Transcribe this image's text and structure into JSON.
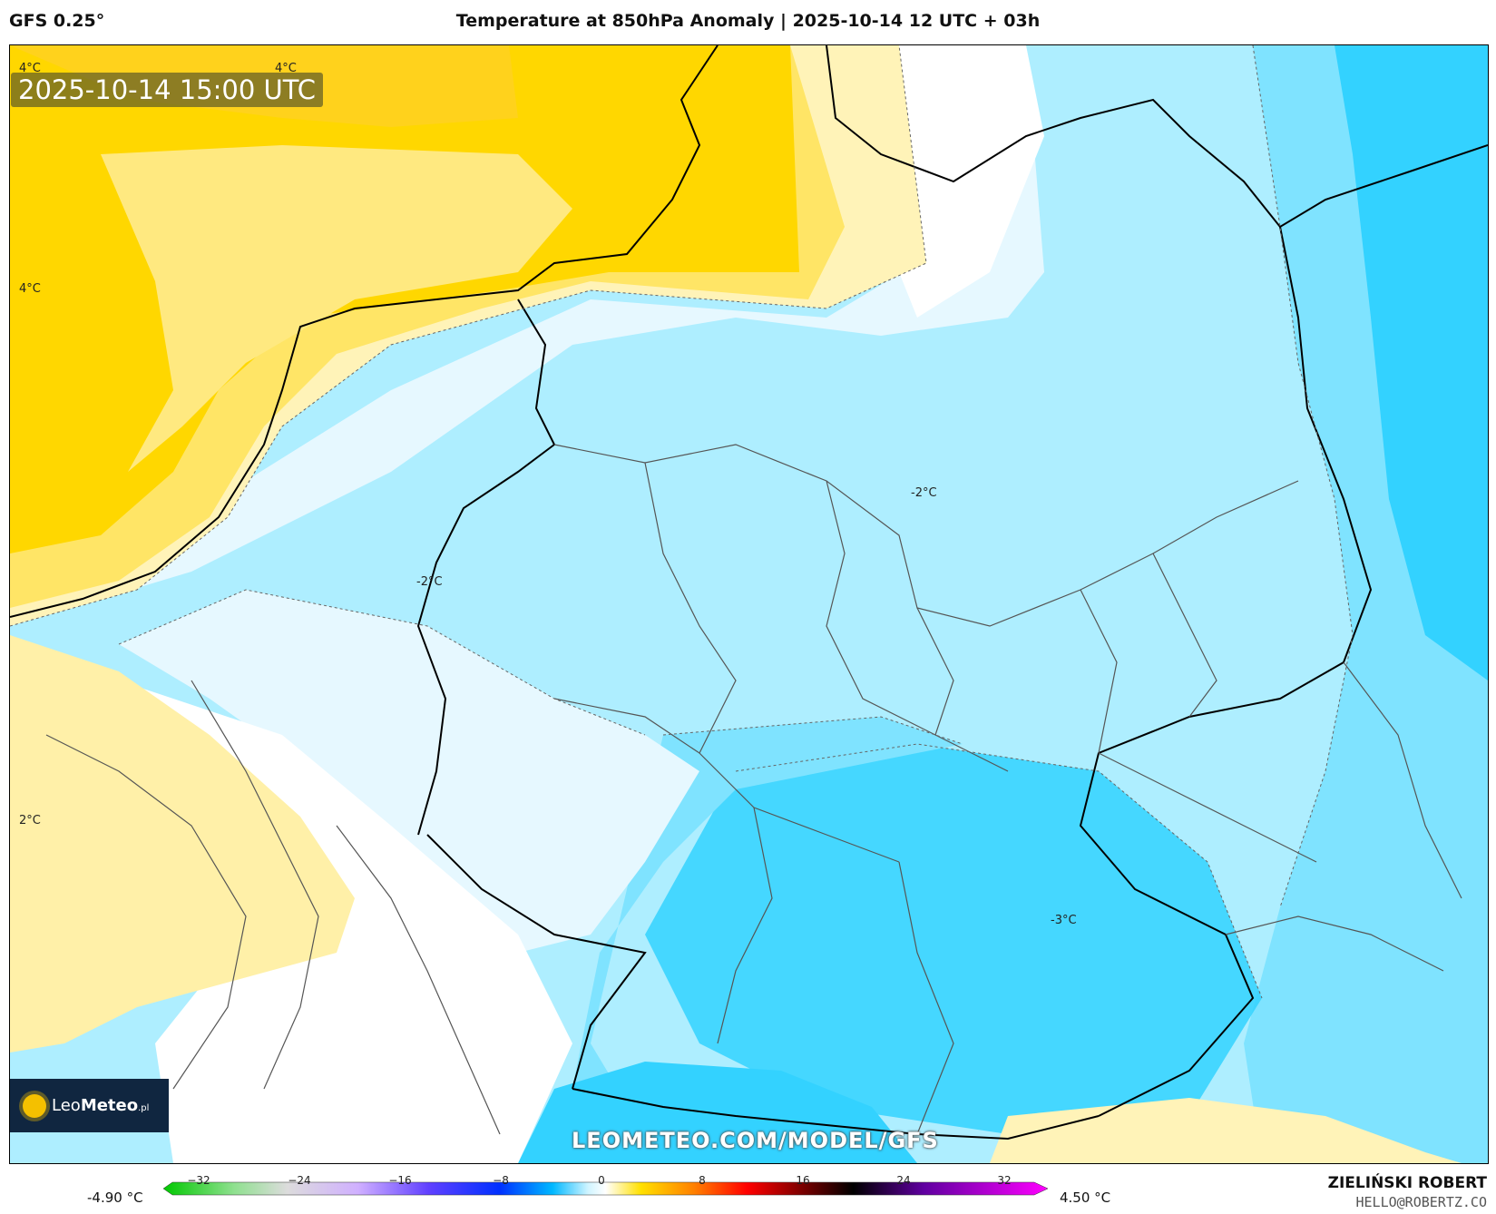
{
  "header": {
    "model": "GFS 0.25°",
    "title": "Temperature at 850hPa Anomaly | 2025-10-14 12 UTC + 03h"
  },
  "map": {
    "valid_time": "2025-10-14 15:00 UTC",
    "watermark": "LEOMETEO.COM/MODEL/GFS",
    "contour_labels": [
      "4°C",
      "4°C",
      "4°C",
      "2°C",
      "-2°C",
      "-2°C",
      "-3°C"
    ],
    "colors": {
      "warm_strong": "#ffd700",
      "warm": "#ffe566",
      "warm_light": "#fff3b8",
      "neutral": "#ffffff",
      "cool_light": "#e6f8ff",
      "cool": "#aeeeff",
      "cool_mid": "#7fe3ff",
      "cool_strong": "#33d2ff"
    }
  },
  "logo": {
    "brand": "Leo",
    "brand_bold": "Meteo",
    "suffix": ".pl"
  },
  "legend": {
    "min_label": "-4.90 °C",
    "max_label": "4.50 °C",
    "ticks": [
      "−32",
      "−24",
      "−16",
      "−8",
      "0",
      "8",
      "16",
      "24",
      "32"
    ]
  },
  "author": {
    "name": "ZIELIŃSKI ROBERT",
    "email": "HELLO@ROBERTZ.CO"
  }
}
